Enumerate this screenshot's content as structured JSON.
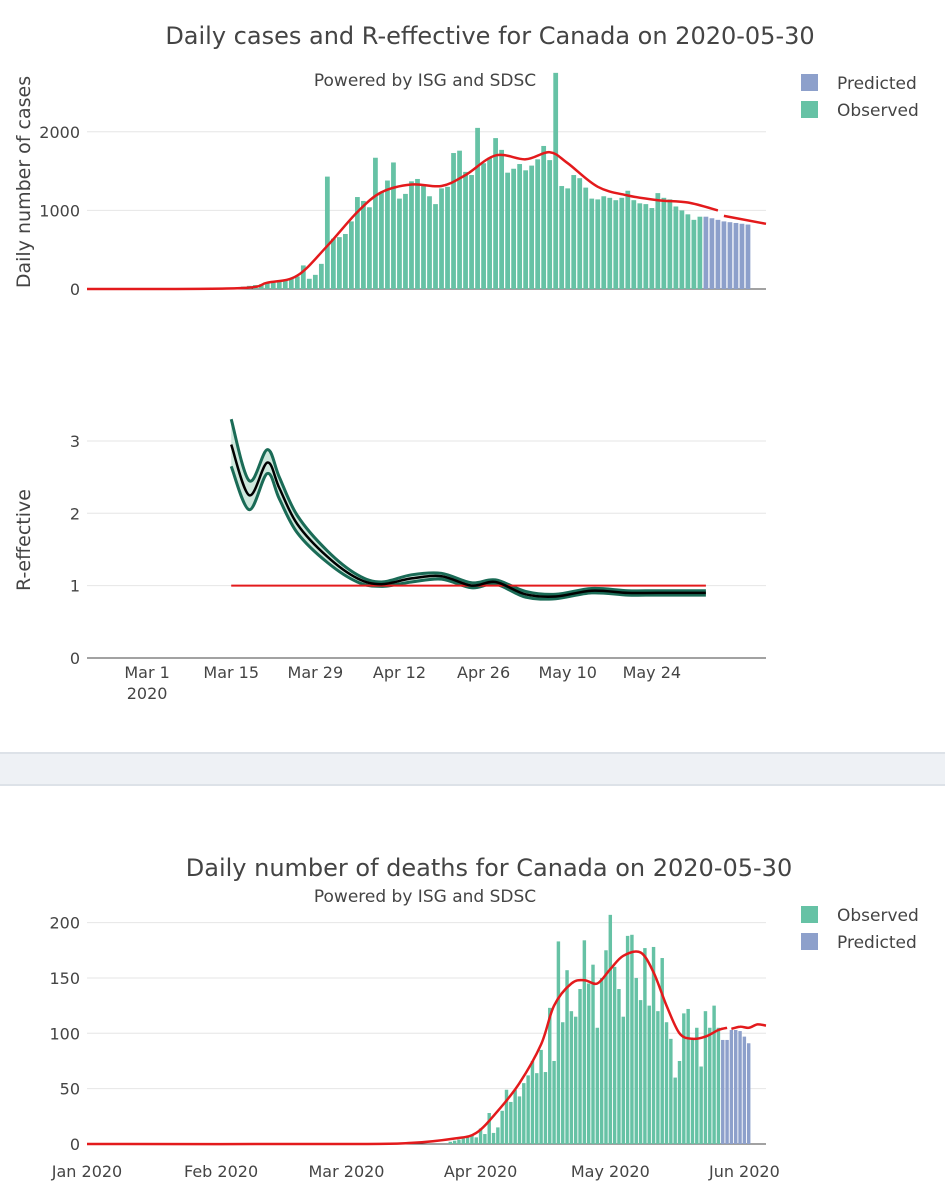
{
  "colors": {
    "observed": "#66c2a5",
    "predicted": "#8da0cb",
    "trend": "#e31a1c",
    "band_fill": "#cfe8dd",
    "band_edge": "#1a6b56",
    "reff_line": "#000000",
    "threshold": "#e31a1c"
  },
  "chart_data": [
    {
      "type": "bar",
      "title": "Daily cases and R-effective for Canada on 2020-05-30",
      "subtitle": "Powered by ISG and SDSC",
      "ylabel": "Daily number of cases",
      "ylim": [
        0,
        2850
      ],
      "yticks": [
        0,
        1000,
        2000
      ],
      "ytick_labels": [
        "0",
        "1000",
        "2000"
      ],
      "x_start_day": 0,
      "x_note": "day 0 = 2020-02-20, one bar per day",
      "legend": [
        {
          "name": "Predicted",
          "color_key": "predicted"
        },
        {
          "name": "Observed",
          "color_key": "observed"
        }
      ],
      "observed": [
        0,
        0,
        0,
        0,
        0,
        0,
        0,
        0,
        0,
        0,
        0,
        0,
        0,
        0,
        0,
        0,
        0,
        0,
        0,
        0,
        0,
        0,
        0,
        0,
        0,
        20,
        30,
        40,
        50,
        60,
        70,
        80,
        100,
        120,
        130,
        160,
        300,
        130,
        180,
        320,
        1430,
        640,
        660,
        700,
        860,
        1170,
        1120,
        1040,
        1670,
        1230,
        1380,
        1610,
        1150,
        1210,
        1370,
        1400,
        1330,
        1180,
        1080,
        1280,
        1300,
        1730,
        1760,
        1490,
        1450,
        2050,
        1600,
        1670,
        1920,
        1770,
        1480,
        1530,
        1590,
        1510,
        1570,
        1650,
        1820,
        1640,
        2750,
        1310,
        1280,
        1450,
        1410,
        1290,
        1150,
        1140,
        1180,
        1160,
        1130,
        1160,
        1250,
        1130,
        1090,
        1080,
        1030,
        1220,
        1160,
        1140,
        1050,
        1000,
        950,
        880,
        920
      ],
      "predicted": [
        920,
        900,
        880,
        860,
        850,
        840,
        830,
        820
      ],
      "trend": [
        [
          0,
          0
        ],
        [
          25,
          10
        ],
        [
          30,
          80
        ],
        [
          35,
          170
        ],
        [
          40,
          550
        ],
        [
          45,
          980
        ],
        [
          49,
          1230
        ],
        [
          54,
          1330
        ],
        [
          59,
          1310
        ],
        [
          63,
          1450
        ],
        [
          68,
          1700
        ],
        [
          73,
          1650
        ],
        [
          77,
          1740
        ],
        [
          80,
          1600
        ],
        [
          85,
          1300
        ],
        [
          90,
          1190
        ],
        [
          95,
          1130
        ],
        [
          100,
          1100
        ],
        [
          105,
          1000
        ]
      ],
      "trend_pred": [
        [
          106,
          930
        ],
        [
          113,
          830
        ]
      ]
    },
    {
      "type": "line",
      "ylabel": "R-effective",
      "ylim": [
        0,
        3.4
      ],
      "yticks": [
        0,
        1,
        2,
        3
      ],
      "ytick_labels": [
        "0",
        "1",
        "2",
        "3"
      ],
      "xticks": [
        {
          "day": 10,
          "label": "Mar 1",
          "label2": "2020"
        },
        {
          "day": 24,
          "label": "Mar 15"
        },
        {
          "day": 38,
          "label": "Mar 29"
        },
        {
          "day": 52,
          "label": "Apr 12"
        },
        {
          "day": 66,
          "label": "Apr 26"
        },
        {
          "day": 80,
          "label": "May 10"
        },
        {
          "day": 94,
          "label": "May 24"
        }
      ],
      "r_mean": [
        [
          24,
          2.95
        ],
        [
          27,
          2.25
        ],
        [
          30,
          2.7
        ],
        [
          32,
          2.35
        ],
        [
          35,
          1.85
        ],
        [
          40,
          1.4
        ],
        [
          45,
          1.1
        ],
        [
          49,
          1.02
        ],
        [
          54,
          1.1
        ],
        [
          59,
          1.13
        ],
        [
          64,
          1.0
        ],
        [
          68,
          1.05
        ],
        [
          73,
          0.88
        ],
        [
          78,
          0.85
        ],
        [
          84,
          0.93
        ],
        [
          90,
          0.9
        ],
        [
          95,
          0.9
        ],
        [
          103,
          0.9
        ]
      ],
      "r_upper": [
        [
          24,
          3.3
        ],
        [
          27,
          2.45
        ],
        [
          30,
          2.88
        ],
        [
          32,
          2.5
        ],
        [
          35,
          1.97
        ],
        [
          40,
          1.48
        ],
        [
          45,
          1.15
        ],
        [
          49,
          1.05
        ],
        [
          54,
          1.15
        ],
        [
          59,
          1.17
        ],
        [
          64,
          1.04
        ],
        [
          68,
          1.08
        ],
        [
          73,
          0.92
        ],
        [
          78,
          0.88
        ],
        [
          84,
          0.96
        ],
        [
          90,
          0.93
        ],
        [
          95,
          0.93
        ],
        [
          103,
          0.93
        ]
      ],
      "r_lower": [
        [
          24,
          2.65
        ],
        [
          27,
          2.05
        ],
        [
          30,
          2.55
        ],
        [
          32,
          2.2
        ],
        [
          35,
          1.73
        ],
        [
          40,
          1.32
        ],
        [
          45,
          1.05
        ],
        [
          49,
          0.99
        ],
        [
          54,
          1.05
        ],
        [
          59,
          1.09
        ],
        [
          64,
          0.97
        ],
        [
          68,
          1.02
        ],
        [
          73,
          0.84
        ],
        [
          78,
          0.82
        ],
        [
          84,
          0.9
        ],
        [
          90,
          0.87
        ],
        [
          95,
          0.87
        ],
        [
          103,
          0.87
        ]
      ],
      "threshold": {
        "value": 1,
        "from_day": 24,
        "to_day": 103
      }
    },
    {
      "type": "bar",
      "title": "Daily number of deaths for Canada on 2020-05-30",
      "subtitle": "Powered by ISG and SDSC",
      "ylim": [
        0,
        215
      ],
      "yticks": [
        0,
        50,
        100,
        150,
        200
      ],
      "ytick_labels": [
        "0",
        "50",
        "100",
        "150",
        "200"
      ],
      "xticks": [
        {
          "day": 0,
          "label": "Jan 2020"
        },
        {
          "day": 31,
          "label": "Feb 2020"
        },
        {
          "day": 60,
          "label": "Mar 2020"
        },
        {
          "day": 91,
          "label": "Apr 2020"
        },
        {
          "day": 121,
          "label": "May 2020"
        },
        {
          "day": 152,
          "label": "Jun 2020"
        }
      ],
      "x_note": "day 0 = 2020-01-01",
      "observed_start_day": 84,
      "observed": [
        2,
        3,
        4,
        5,
        7,
        8,
        6,
        14,
        9,
        28,
        10,
        15,
        30,
        49,
        38,
        49,
        43,
        55,
        62,
        75,
        64,
        85,
        65,
        123,
        75,
        183,
        110,
        157,
        120,
        115,
        140,
        184,
        145,
        162,
        105,
        150,
        175,
        207,
        160,
        140,
        115,
        188,
        189,
        150,
        130,
        177,
        125,
        178,
        120,
        168,
        110,
        95,
        60,
        75,
        118,
        122,
        95,
        105,
        70,
        120,
        105,
        125,
        105
      ],
      "predicted_start_day": 147,
      "predicted": [
        94,
        94,
        103,
        103,
        102,
        97,
        91
      ],
      "trend": [
        [
          0,
          0
        ],
        [
          60,
          0
        ],
        [
          75,
          1
        ],
        [
          85,
          5
        ],
        [
          90,
          10
        ],
        [
          95,
          30
        ],
        [
          100,
          55
        ],
        [
          105,
          90
        ],
        [
          108,
          125
        ],
        [
          112,
          145
        ],
        [
          115,
          148
        ],
        [
          118,
          145
        ],
        [
          121,
          158
        ],
        [
          124,
          170
        ],
        [
          128,
          173
        ],
        [
          131,
          155
        ],
        [
          134,
          125
        ],
        [
          137,
          100
        ],
        [
          140,
          95
        ],
        [
          143,
          97
        ],
        [
          146,
          103
        ],
        [
          148,
          105
        ]
      ],
      "trend_pred": [
        [
          149,
          104
        ],
        [
          151,
          106
        ],
        [
          153,
          105
        ],
        [
          155,
          108
        ],
        [
          157,
          107
        ]
      ],
      "legend": [
        {
          "name": "Observed",
          "color_key": "observed"
        },
        {
          "name": "Predicted",
          "color_key": "predicted"
        }
      ]
    }
  ]
}
